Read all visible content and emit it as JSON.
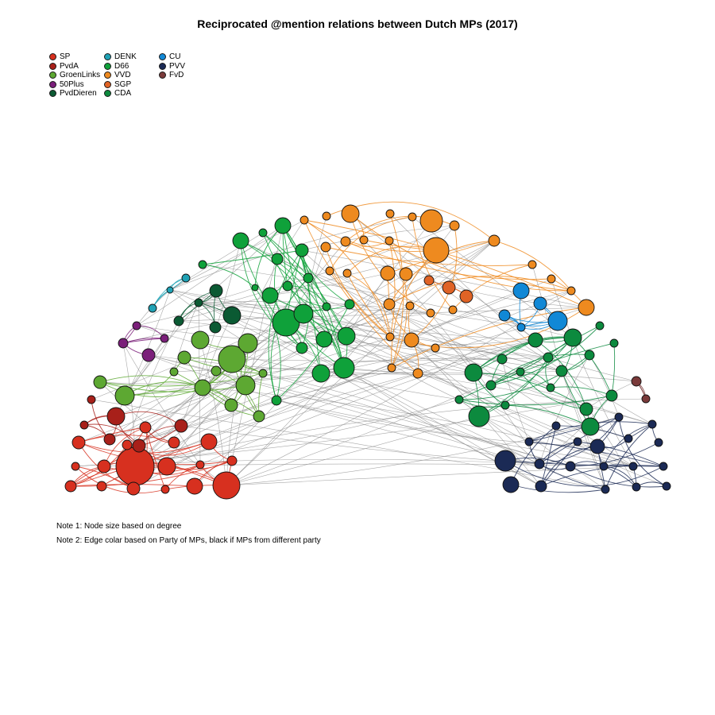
{
  "title": "Reciprocated @mention relations between Dutch MPs (2017)",
  "legend": [
    {
      "party": "SP",
      "color": "#d7301f"
    },
    {
      "party": "PvdA",
      "color": "#a8201a"
    },
    {
      "party": "GroenLinks",
      "color": "#5da832"
    },
    {
      "party": "50Plus",
      "color": "#7b1f7a"
    },
    {
      "party": "PvdDieren",
      "color": "#0b5a33"
    },
    {
      "party": "DENK",
      "color": "#1fa2b5"
    },
    {
      "party": "D66",
      "color": "#0fa13a"
    },
    {
      "party": "VVD",
      "color": "#ee8a1f"
    },
    {
      "party": "SGP",
      "color": "#e06325"
    },
    {
      "party": "CDA",
      "color": "#0c8a3e"
    },
    {
      "party": "CU",
      "color": "#1188d6"
    },
    {
      "party": "PVV",
      "color": "#1b2a55"
    },
    {
      "party": "FvD",
      "color": "#7a3a3a"
    }
  ],
  "notes": [
    "Note 1: Node size based on degree",
    "Note 2: Edge colar based on Party of MPs, black if MPs from different party"
  ]
}
